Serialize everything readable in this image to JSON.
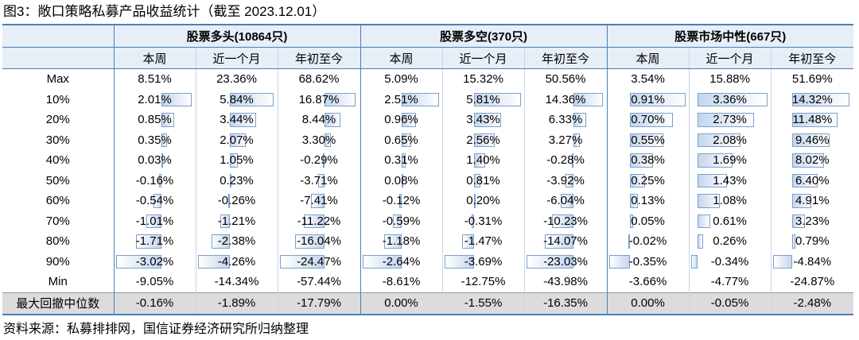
{
  "caption": "图3：敞口策略私募产品收益统计（截至 2023.12.01）",
  "groups": [
    "股票多头(10864只)",
    "股票多空(370只)",
    "股票市场中性(667只)"
  ],
  "sub_headers": [
    "本周",
    "近一个月",
    "年初至今",
    "本周",
    "近一个月",
    "年初至今",
    "本周",
    "近一个月",
    "年初至今"
  ],
  "rows": [
    {
      "label": "Max",
      "values": [
        "8.51%",
        "23.36%",
        "68.62%",
        "5.09%",
        "15.32%",
        "50.56%",
        "3.54%",
        "15.88%",
        "51.69%"
      ],
      "bars": null
    },
    {
      "label": "10%",
      "values": [
        "2.01%",
        "5.84%",
        "16.87%",
        "2.51%",
        "5.81%",
        "14.36%",
        "0.91%",
        "3.36%",
        "14.32%"
      ],
      "bars": [
        2.01,
        5.84,
        16.87,
        2.51,
        5.81,
        14.36,
        0.91,
        3.36,
        14.32
      ]
    },
    {
      "label": "20%",
      "values": [
        "0.85%",
        "3.44%",
        "8.44%",
        "0.96%",
        "3.43%",
        "6.33%",
        "0.70%",
        "2.73%",
        "11.48%"
      ],
      "bars": [
        0.85,
        3.44,
        8.44,
        0.96,
        3.43,
        6.33,
        0.7,
        2.73,
        11.48
      ]
    },
    {
      "label": "30%",
      "values": [
        "0.35%",
        "2.07%",
        "3.30%",
        "0.65%",
        "2.56%",
        "3.27%",
        "0.55%",
        "2.08%",
        "9.46%"
      ],
      "bars": [
        0.35,
        2.07,
        3.3,
        0.65,
        2.56,
        3.27,
        0.55,
        2.08,
        9.46
      ]
    },
    {
      "label": "40%",
      "values": [
        "0.03%",
        "1.05%",
        "-0.29%",
        "0.31%",
        "1.40%",
        "-0.28%",
        "0.38%",
        "1.69%",
        "8.02%"
      ],
      "bars": [
        0.03,
        1.05,
        -0.29,
        0.31,
        1.4,
        -0.28,
        0.38,
        1.69,
        8.02
      ]
    },
    {
      "label": "50%",
      "values": [
        "-0.16%",
        "0.23%",
        "-3.71%",
        "0.08%",
        "0.81%",
        "-3.92%",
        "0.25%",
        "1.43%",
        "6.40%"
      ],
      "bars": [
        -0.16,
        0.23,
        -3.71,
        0.08,
        0.81,
        -3.92,
        0.25,
        1.43,
        6.4
      ]
    },
    {
      "label": "60%",
      "values": [
        "-0.54%",
        "-0.26%",
        "-7.41%",
        "-0.12%",
        "0.20%",
        "-6.04%",
        "0.13%",
        "1.08%",
        "4.91%"
      ],
      "bars": [
        -0.54,
        -0.26,
        -7.41,
        -0.12,
        0.2,
        -6.04,
        0.13,
        1.08,
        4.91
      ]
    },
    {
      "label": "70%",
      "values": [
        "-1.01%",
        "-1.21%",
        "-11.22%",
        "-0.59%",
        "-0.31%",
        "-10.23%",
        "0.05%",
        "0.61%",
        "3.23%"
      ],
      "bars": [
        -1.01,
        -1.21,
        -11.22,
        -0.59,
        -0.31,
        -10.23,
        0.05,
        0.61,
        3.23
      ]
    },
    {
      "label": "80%",
      "values": [
        "-1.71%",
        "-2.38%",
        "-16.04%",
        "-1.18%",
        "-1.47%",
        "-14.07%",
        "-0.02%",
        "0.26%",
        "0.79%"
      ],
      "bars": [
        -1.71,
        -2.38,
        -16.04,
        -1.18,
        -1.47,
        -14.07,
        -0.02,
        0.26,
        0.79
      ]
    },
    {
      "label": "90%",
      "values": [
        "-3.02%",
        "-4.26%",
        "-24.47%",
        "-2.64%",
        "-3.69%",
        "-23.03%",
        "-0.35%",
        "-0.34%",
        "-4.84%"
      ],
      "bars": [
        -3.02,
        -4.26,
        -24.47,
        -2.64,
        -3.69,
        -23.03,
        -0.35,
        -0.34,
        -4.84
      ]
    },
    {
      "label": "Min",
      "values": [
        "-9.05%",
        "-14.34%",
        "-57.44%",
        "-8.61%",
        "-12.75%",
        "-43.98%",
        "-3.66%",
        "-4.77%",
        "-24.87%"
      ],
      "bars": null
    }
  ],
  "summary_row": {
    "label": "最大回撤中位数",
    "values": [
      "-0.16%",
      "-1.89%",
      "-17.79%",
      "0.00%",
      "-1.55%",
      "-16.35%",
      "0.00%",
      "-0.05%",
      "-2.48%"
    ]
  },
  "source": "资料来源：私募排排网，国信证券经济研究所归纳整理",
  "colors": {
    "header_bg": "#e6eef7",
    "rule": "#4a7ebb",
    "bar_fill": "#c3d6ee",
    "bar_border": "#7d9fcc",
    "summary_bg": "#dcdcdc"
  }
}
